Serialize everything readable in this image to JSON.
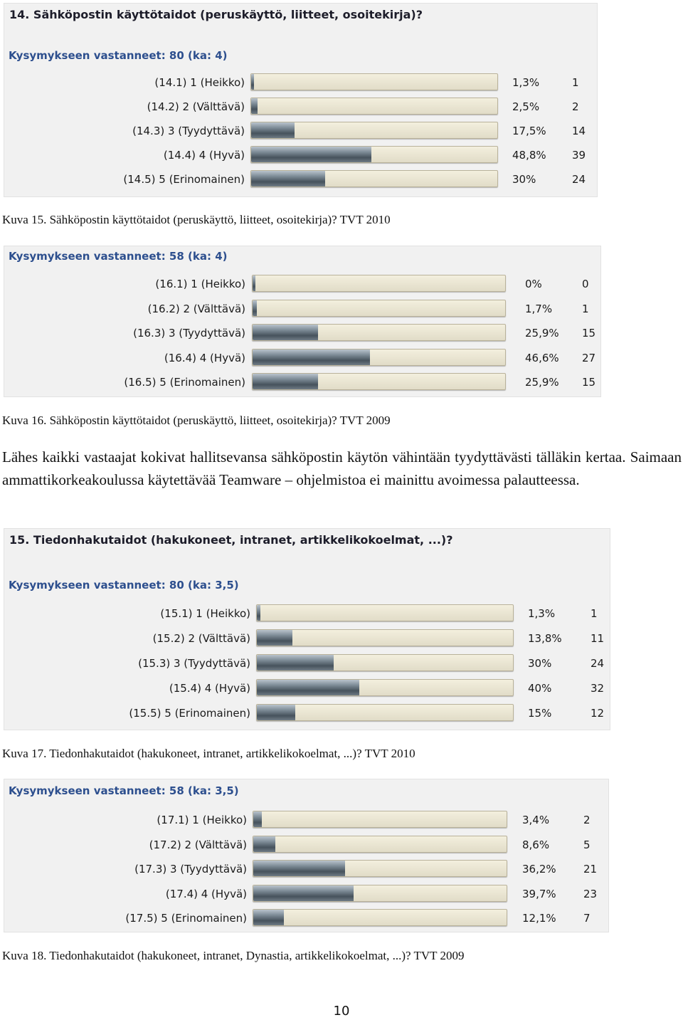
{
  "chart_data": [
    {
      "type": "bar",
      "title": "14. Sähköpostin käyttötaidot (peruskäyttö, liitteet, osoitekirja)?",
      "respondents": "Kysymykseen vastanneet: 80 (ka: 4)",
      "categories": [
        "(14.1) 1 (Heikko)",
        "(14.2) 2 (Välttävä)",
        "(14.3) 3 (Tyydyttävä)",
        "(14.4) 4 (Hyvä)",
        "(14.5) 5 (Erinomainen)"
      ],
      "values": [
        1.3,
        2.5,
        17.5,
        48.8,
        30
      ],
      "percent_labels": [
        "1,3%",
        "2,5%",
        "17,5%",
        "48,8%",
        "30%"
      ],
      "counts": [
        "1",
        "2",
        "14",
        "39",
        "24"
      ],
      "xlim": [
        0,
        100
      ]
    },
    {
      "type": "bar",
      "title": "",
      "respondents": "Kysymykseen vastanneet: 58 (ka: 4)",
      "categories": [
        "(16.1) 1 (Heikko)",
        "(16.2) 2 (Välttävä)",
        "(16.3) 3 (Tyydyttävä)",
        "(16.4) 4 (Hyvä)",
        "(16.5) 5 (Erinomainen)"
      ],
      "values": [
        0,
        1.7,
        25.9,
        46.6,
        25.9
      ],
      "percent_labels": [
        "0%",
        "1,7%",
        "25,9%",
        "46,6%",
        "25,9%"
      ],
      "counts": [
        "0",
        "1",
        "15",
        "27",
        "15"
      ],
      "xlim": [
        0,
        100
      ]
    },
    {
      "type": "bar",
      "title": "15. Tiedonhakutaidot (hakukoneet, intranet, artikkelikokoelmat, ...)?",
      "respondents": "Kysymykseen vastanneet: 80 (ka: 3,5)",
      "categories": [
        "(15.1) 1 (Heikko)",
        "(15.2) 2 (Välttävä)",
        "(15.3) 3 (Tyydyttävä)",
        "(15.4) 4 (Hyvä)",
        "(15.5) 5 (Erinomainen)"
      ],
      "values": [
        1.3,
        13.8,
        30,
        40,
        15
      ],
      "percent_labels": [
        "1,3%",
        "13,8%",
        "30%",
        "40%",
        "15%"
      ],
      "counts": [
        "1",
        "11",
        "24",
        "32",
        "12"
      ],
      "xlim": [
        0,
        100
      ]
    },
    {
      "type": "bar",
      "title": "",
      "respondents": "Kysymykseen vastanneet: 58 (ka: 3,5)",
      "categories": [
        "(17.1) 1 (Heikko)",
        "(17.2) 2 (Välttävä)",
        "(17.3) 3 (Tyydyttävä)",
        "(17.4) 4 (Hyvä)",
        "(17.5) 5 (Erinomainen)"
      ],
      "values": [
        3.4,
        8.6,
        36.2,
        39.7,
        12.1
      ],
      "percent_labels": [
        "3,4%",
        "8,6%",
        "36,2%",
        "39,7%",
        "12,1%"
      ],
      "counts": [
        "2",
        "5",
        "21",
        "23",
        "7"
      ],
      "xlim": [
        0,
        100
      ]
    }
  ],
  "captions": [
    "Kuva 15. Sähköpostin käyttötaidot (peruskäyttö, liitteet, osoitekirja)? TVT 2010",
    "Kuva 16. Sähköpostin käyttötaidot (peruskäyttö, liitteet, osoitekirja)? TVT 2009",
    "Kuva 17. Tiedonhakutaidot (hakukoneet, intranet, artikkelikokoelmat, ...)? TVT 2010",
    "Kuva 18. Tiedonhakutaidot (hakukoneet, intranet, Dynastia, artikkelikokoelmat, ...)? TVT 2009"
  ],
  "paragraph": "Lähes kaikki vastaajat kokivat hallitsevansa sähköpostin käytön vähintään tyydyttävästi tälläkin kertaa. Saimaan ammattikorkeakoulussa käytettävää Teamware – ohjelmistoa ei mainittu avoimessa palautteessa.",
  "page_number": "10",
  "colors": {
    "panel_background": "#f1f1f1",
    "bar_track": "#e8e3cf",
    "bar_fill": "#5a6670",
    "respondents_text": "#2d4f8e"
  }
}
